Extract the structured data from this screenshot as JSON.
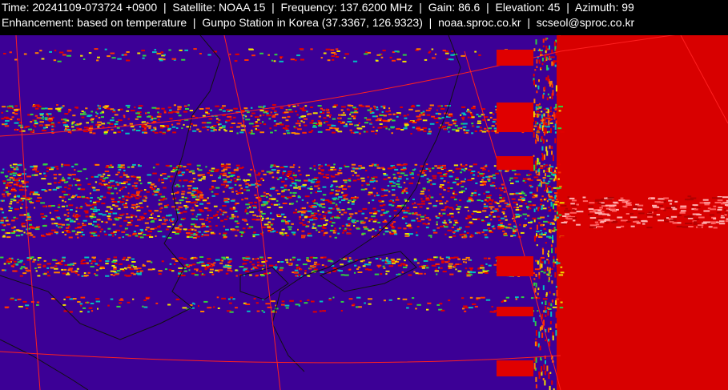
{
  "header": {
    "line1": "Time: 20241109-073724 +0900  |  Satellite: NOAA 15  |  Frequency: 137.6200 MHz  |  Gain: 86.6  |  Elevation: 45  |  Azimuth: 99",
    "line2": "Enhancement: based on temperature  |  Gunpo Station in Korea (37.3367, 126.9323)  |  noaa.sproc.co.kr  |  scseol@sproc.co.kr"
  }
}
